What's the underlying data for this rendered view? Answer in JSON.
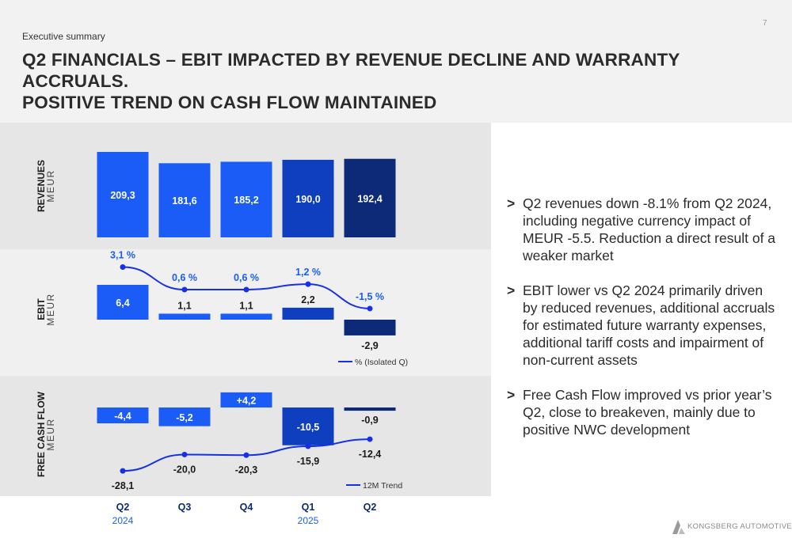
{
  "header": {
    "section": "Executive summary",
    "page_number": "7",
    "title_line1": "Q2 FINANCIALS – EBIT IMPACTED BY REVENUE DECLINE AND WARRANTY ACCRUALS.",
    "title_line2": "POSITIVE TREND ON CASH FLOW MAINTAINED"
  },
  "colors": {
    "light_blue": "#1a5cf5",
    "mid_blue": "#0f3fbf",
    "dark_navy": "#0c2a78",
    "trend_line": "#1630e6",
    "band_gray": "#e6e6e6"
  },
  "chart_data": {
    "type": "bar",
    "categories": [
      "Q2",
      "Q3",
      "Q4",
      "Q1",
      "Q2"
    ],
    "category_years": [
      "2024",
      "",
      "",
      "2025",
      ""
    ],
    "bar_colors": [
      "#1a5cf5",
      "#1a5cf5",
      "#1a5cf5",
      "#0f3fbf",
      "#0c2a78"
    ],
    "panels": [
      {
        "key": "revenues",
        "label": "REVENUES",
        "unit": "MEUR",
        "series": [
          {
            "values": [
              209.3,
              181.6,
              185.2,
              190.0,
              192.4
            ],
            "labels": [
              "209,3",
              "181,6",
              "185,2",
              "190,0",
              "192,4"
            ]
          }
        ]
      },
      {
        "key": "ebit",
        "label": "EBIT",
        "unit": "MEUR",
        "series": [
          {
            "values": [
              6.4,
              1.1,
              1.1,
              2.2,
              -2.9
            ],
            "labels": [
              "6,4",
              "1,1",
              "1,1",
              "2,2",
              "-2,9"
            ]
          },
          {
            "name": "% (Isolated Q)",
            "type": "line",
            "values": [
              3.1,
              0.6,
              0.6,
              1.2,
              -1.5
            ],
            "labels": [
              "3,1 %",
              "0,6 %",
              "0,6 %",
              "1,2 %",
              "-1,5 %"
            ]
          }
        ],
        "legend": "% (Isolated Q)"
      },
      {
        "key": "fcf",
        "label": "FREE CASH FLOW",
        "unit": "MEUR",
        "series": [
          {
            "values": [
              -4.4,
              -5.2,
              4.2,
              -10.5,
              -0.9
            ],
            "labels": [
              "-4,4",
              "-5,2",
              "+4,2",
              "-10,5",
              "-0,9"
            ]
          },
          {
            "name": "12M Trend",
            "type": "line",
            "values": [
              -28.1,
              -20.0,
              -20.3,
              -15.9,
              -12.4
            ],
            "labels": [
              "-28,1",
              "-20,0",
              "-20,3",
              "-15,9",
              "-12,4"
            ]
          }
        ],
        "legend": "12M Trend"
      }
    ]
  },
  "bullets": [
    "Q2 revenues down -8.1% from Q2 2024, including negative currency impact of MEUR -5.5. Reduction a direct result of a weaker market",
    "EBIT lower vs Q2 2024 primarily driven by reduced revenues, additional accruals for estimated future warranty expenses, additional tariff costs and impairment of non-current assets",
    "Free Cash Flow improved vs prior year’s Q2, close to breakeven, mainly due to positive NWC development"
  ],
  "bullet_marker": ">",
  "footer": {
    "logo_text": "KONGSBERG AUTOMOTIVE",
    "logo_icon": "kongsberg-logo-icon"
  }
}
